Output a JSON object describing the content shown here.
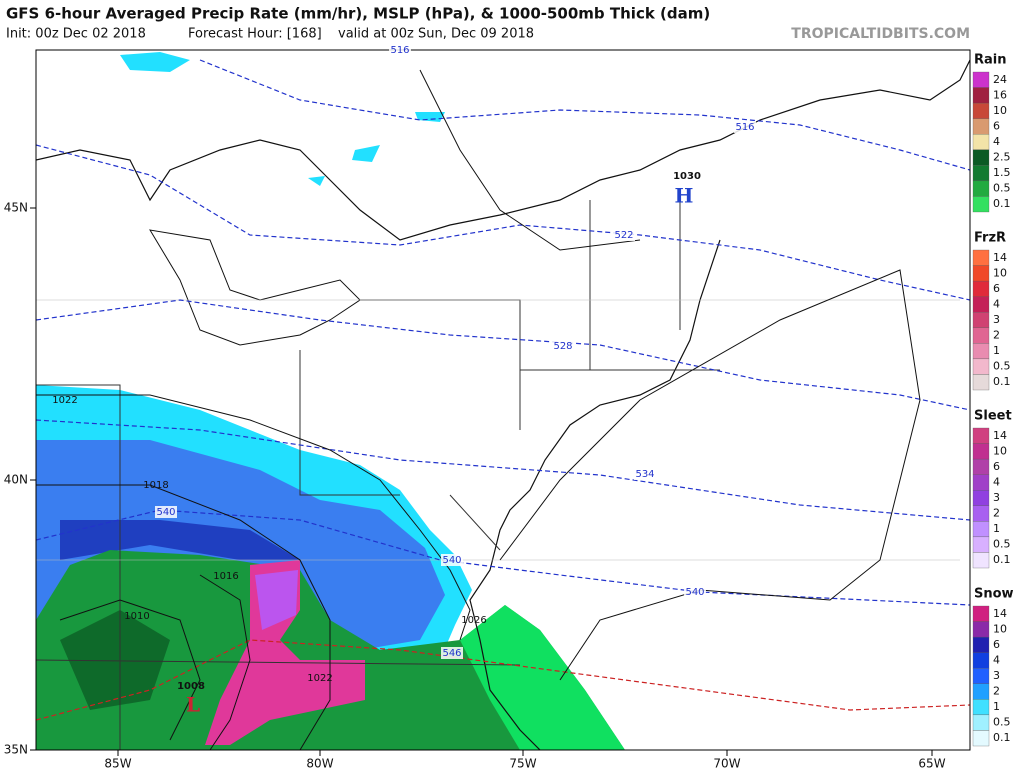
{
  "header": {
    "title": "GFS 6-hour Averaged Precip Rate (mm/hr), MSLP (hPa), & 1000-500mb Thick (dam)",
    "init": "Init: 00z Dec 02 2018",
    "forecast_hour": "Forecast Hour: [168]",
    "valid": "valid at 00z Sun, Dec 09 2018",
    "watermark": "TROPICALTIDBITS.COM"
  },
  "map": {
    "lat_labels": [
      "45N",
      "40N",
      "35N"
    ],
    "lon_labels": [
      "85W",
      "80W",
      "75W",
      "70W",
      "65W"
    ],
    "thickness_labels": [
      "516",
      "516",
      "522",
      "528",
      "534",
      "540",
      "540",
      "540",
      "546"
    ],
    "pressure_labels": [
      "1030",
      "1022",
      "1018",
      "1016",
      "1010",
      "1026",
      "1022",
      "1008"
    ],
    "centers": [
      "H",
      "L"
    ]
  },
  "legends": [
    {
      "title": "Rain",
      "labels": [
        "24",
        "16",
        "10",
        "6",
        "4",
        "2.5",
        "1.5",
        "0.5",
        "0.1"
      ],
      "colors": [
        "#cc33cc",
        "#a02040",
        "#c84838",
        "#d99a70",
        "#f3e3a8",
        "#0b5a24",
        "#127a30",
        "#22aa40",
        "#33e060"
      ]
    },
    {
      "title": "FrzR",
      "labels": [
        "14",
        "10",
        "6",
        "4",
        "3",
        "2",
        "1",
        "0.5",
        "0.1"
      ],
      "colors": [
        "#ff7040",
        "#f04828",
        "#e02a3a",
        "#c42058",
        "#d04272",
        "#e06592",
        "#e98cb0",
        "#f2b8cc",
        "#e6dada"
      ]
    },
    {
      "title": "Sleet",
      "labels": [
        "14",
        "10",
        "6",
        "4",
        "3",
        "2",
        "1",
        "0.5",
        "0.1"
      ],
      "colors": [
        "#d04080",
        "#c03090",
        "#b040a8",
        "#a040c8",
        "#9040e0",
        "#a860f0",
        "#c090ff",
        "#d8b0ff",
        "#f0e4ff"
      ]
    },
    {
      "title": "Snow",
      "labels": [
        "14",
        "10",
        "6",
        "4",
        "3",
        "2",
        "1",
        "0.5",
        "0.1"
      ],
      "colors": [
        "#d02080",
        "#8a2aa8",
        "#2020b0",
        "#1040e0",
        "#2060ff",
        "#20a0ff",
        "#40e0ff",
        "#a0f0ff",
        "#e4faff"
      ]
    }
  ]
}
